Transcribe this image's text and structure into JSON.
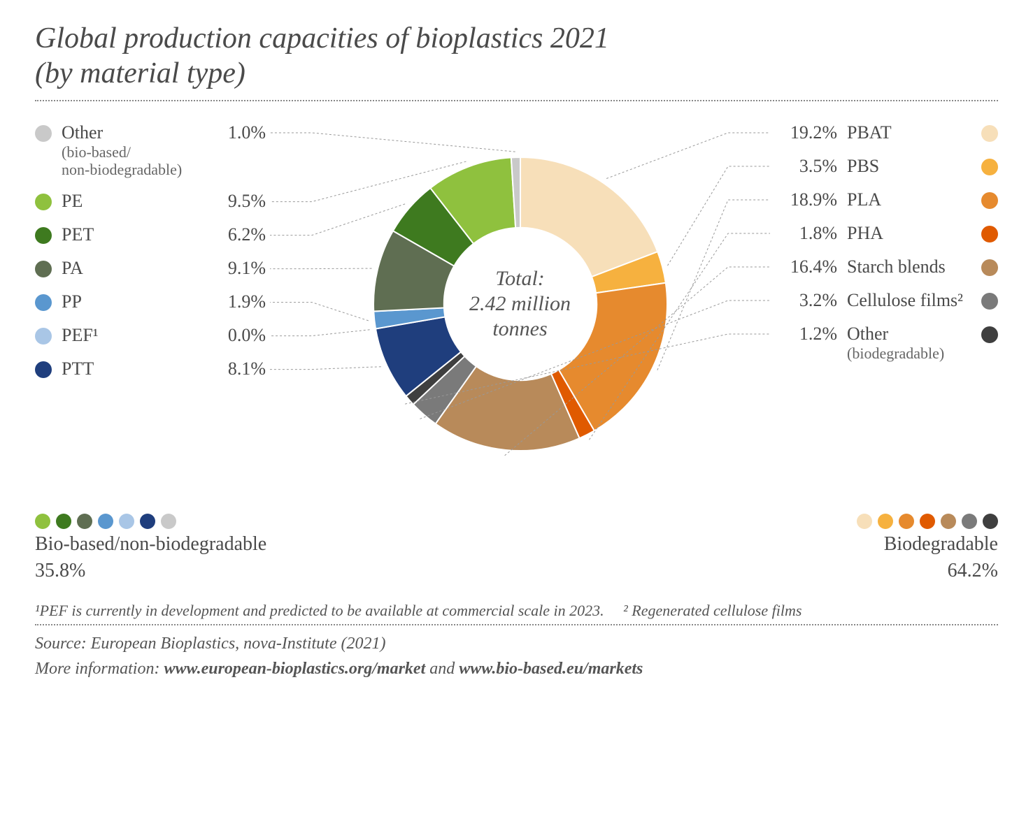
{
  "title_line1": "Global production capacities of bioplastics 2021",
  "title_line2": "(by material type)",
  "chart": {
    "type": "donut",
    "inner_radius_ratio": 0.52,
    "background_color": "#ffffff",
    "gap_color": "#ffffff",
    "start_angle_deg": 0,
    "center_label_line1": "Total:",
    "center_label_line2": "2.42 million",
    "center_label_line3": "tonnes",
    "slices": [
      {
        "key": "PBAT",
        "value": 19.2,
        "color": "#f7dfb9",
        "side": "right",
        "label": "PBAT",
        "sub": ""
      },
      {
        "key": "PBS",
        "value": 3.5,
        "color": "#f6b13f",
        "side": "right",
        "label": "PBS",
        "sub": ""
      },
      {
        "key": "PLA",
        "value": 18.9,
        "color": "#e68a2e",
        "side": "right",
        "label": "PLA",
        "sub": ""
      },
      {
        "key": "PHA",
        "value": 1.8,
        "color": "#e05a00",
        "side": "right",
        "label": "PHA",
        "sub": ""
      },
      {
        "key": "Starch",
        "value": 16.4,
        "color": "#b88a5a",
        "side": "right",
        "label": "Starch blends",
        "sub": ""
      },
      {
        "key": "Cell",
        "value": 3.2,
        "color": "#7a7a7a",
        "side": "right",
        "label": "Cellulose films²",
        "sub": ""
      },
      {
        "key": "OtherB",
        "value": 1.2,
        "color": "#3f3f3f",
        "side": "right",
        "label": "Other",
        "sub": "(biodegradable)"
      },
      {
        "key": "PTT",
        "value": 8.1,
        "color": "#1f3e7d",
        "side": "left",
        "label": "PTT",
        "sub": ""
      },
      {
        "key": "PEF",
        "value": 0.0,
        "color": "#a9c6e6",
        "side": "left",
        "label": "PEF¹",
        "sub": ""
      },
      {
        "key": "PP",
        "value": 1.9,
        "color": "#5a97cf",
        "side": "left",
        "label": "PP",
        "sub": ""
      },
      {
        "key": "PA",
        "value": 9.1,
        "color": "#5f6e52",
        "side": "left",
        "label": "PA",
        "sub": ""
      },
      {
        "key": "PET",
        "value": 6.2,
        "color": "#3e7a1f",
        "side": "left",
        "label": "PET",
        "sub": ""
      },
      {
        "key": "PE",
        "value": 9.5,
        "color": "#8fc13e",
        "side": "left",
        "label": "PE",
        "sub": ""
      },
      {
        "key": "OtherN",
        "value": 1.0,
        "color": "#c9c9c9",
        "side": "left",
        "label": "Other",
        "sub": "(bio-based/\nnon-biodegradable)"
      }
    ]
  },
  "legend_left_order": [
    "OtherN",
    "PE",
    "PET",
    "PA",
    "PP",
    "PEF",
    "PTT"
  ],
  "legend_right_order": [
    "PBAT",
    "PBS",
    "PLA",
    "PHA",
    "Starch",
    "Cell",
    "OtherB"
  ],
  "summary_left": {
    "dots": [
      "#8fc13e",
      "#3e7a1f",
      "#5f6e52",
      "#5a97cf",
      "#a9c6e6",
      "#1f3e7d",
      "#c9c9c9"
    ],
    "label": "Bio-based/non-biodegradable",
    "pct": "35.8%"
  },
  "summary_right": {
    "dots": [
      "#f7dfb9",
      "#f6b13f",
      "#e68a2e",
      "#e05a00",
      "#b88a5a",
      "#7a7a7a",
      "#3f3f3f"
    ],
    "label": "Biodegradable",
    "pct": "64.2%"
  },
  "footnote1": "¹PEF is currently in development and predicted to be available at commercial scale in 2023.",
  "footnote2": "² Regenerated cellulose films",
  "source_line": "Source: European Bioplastics, nova-Institute (2021)",
  "more_info_prefix": "More information: ",
  "more_info_link1": "www.european-bioplastics.org/market",
  "more_info_sep": " and ",
  "more_info_link2": "www.bio-based.eu/markets",
  "leader_color": "#999999"
}
